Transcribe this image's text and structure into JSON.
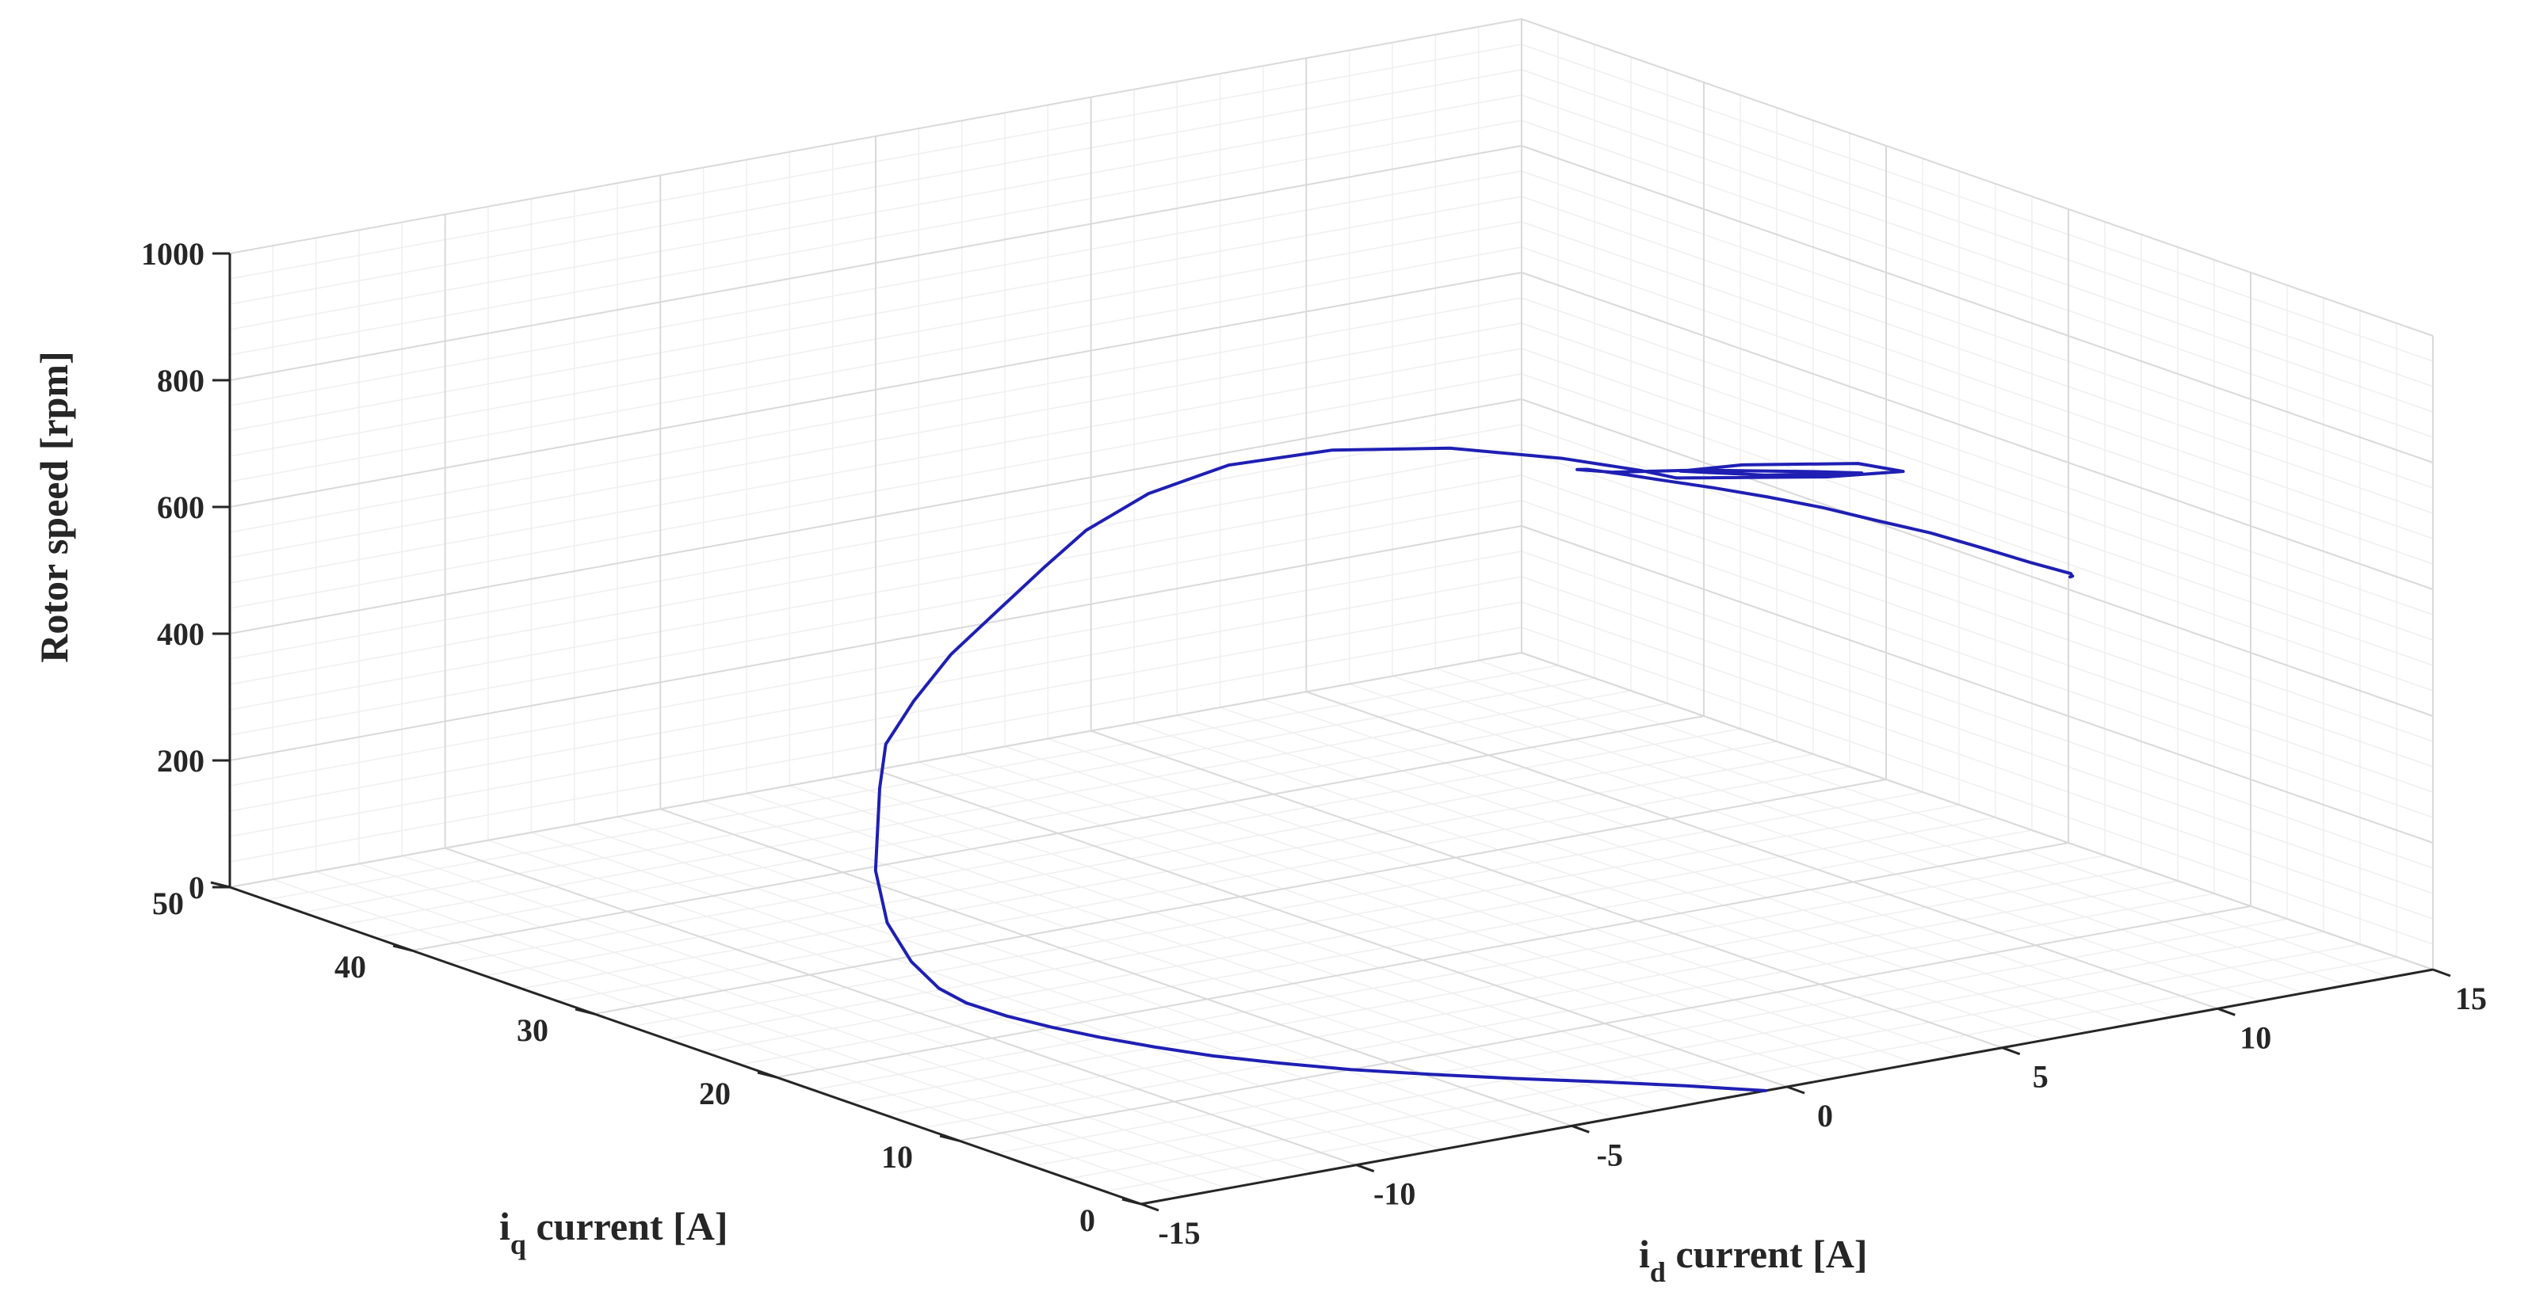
{
  "chart_data": {
    "type": "line",
    "view": "3d",
    "title": "",
    "xlabel": {
      "main": "i",
      "sub": "d",
      "rest": " current [A]"
    },
    "ylabel": {
      "main": "i",
      "sub": "q",
      "rest": " current [A]"
    },
    "zlabel": "Rotor speed [rpm]",
    "xlim": [
      -15,
      15
    ],
    "ylim": [
      0,
      50
    ],
    "zlim": [
      0,
      1000
    ],
    "x_ticks": [
      "-15",
      "-10",
      "-5",
      "0",
      "5",
      "10",
      "15"
    ],
    "y_ticks": [
      "0",
      "10",
      "20",
      "30",
      "40",
      "50"
    ],
    "z_ticks": [
      "0",
      "200",
      "400",
      "600",
      "800",
      "1000"
    ],
    "grid": true,
    "minor_grid": true,
    "line_color": "#1f1fb4",
    "series": [
      {
        "points": [
          [
            -0.5,
            0,
            0
          ],
          [
            -1.5,
            2,
            0
          ],
          [
            -2.6,
            4,
            0
          ],
          [
            -3.8,
            6,
            0
          ],
          [
            -4.9,
            8,
            0
          ],
          [
            -5.9,
            10,
            0
          ],
          [
            -6.7,
            12,
            0
          ],
          [
            -7.4,
            14,
            0
          ],
          [
            -7.9,
            16,
            0
          ],
          [
            -8.3,
            18,
            0
          ],
          [
            -8.6,
            20,
            0
          ],
          [
            -8.8,
            22,
            0
          ],
          [
            -8.9,
            24,
            2
          ],
          [
            -8.9,
            25.5,
            10
          ],
          [
            -8.7,
            27.5,
            30
          ],
          [
            -8.2,
            30,
            60
          ],
          [
            -7.2,
            33,
            100
          ],
          [
            -5.2,
            37.5,
            160
          ],
          [
            -4,
            40,
            190
          ],
          [
            -2.5,
            42,
            220
          ],
          [
            -1,
            43.5,
            260
          ],
          [
            0.5,
            44.5,
            300
          ],
          [
            1.7,
            44.8,
            350
          ],
          [
            2.6,
            44.6,
            400
          ],
          [
            3.5,
            43.3,
            460
          ],
          [
            4.3,
            40.8,
            520
          ],
          [
            5,
            36.8,
            575
          ],
          [
            5.5,
            31.5,
            625
          ],
          [
            5.8,
            26,
            660
          ],
          [
            5.9,
            22,
            680
          ],
          [
            5.9,
            20,
            688
          ],
          [
            7.5,
            15.5,
            715
          ],
          [
            8.2,
            13,
            740
          ],
          [
            8,
            15,
            735
          ],
          [
            7,
            19,
            705
          ],
          [
            6.2,
            20.5,
            690
          ],
          [
            6.9,
            17.5,
            705
          ],
          [
            8,
            14.8,
            722
          ],
          [
            7.6,
            16.5,
            712
          ],
          [
            6.5,
            20.3,
            690
          ],
          [
            5.5,
            22.6,
            676
          ],
          [
            5.2,
            23.8,
            672
          ],
          [
            5.3,
            23.5,
            674
          ],
          [
            5.4,
            21.5,
            684
          ],
          [
            5.5,
            20,
            690
          ],
          [
            5.7,
            17.5,
            700
          ],
          [
            5.9,
            15,
            708
          ],
          [
            6.1,
            12.5,
            714
          ],
          [
            6.3,
            10,
            716
          ],
          [
            6.5,
            7.5,
            719
          ],
          [
            6.6,
            5,
            720
          ],
          [
            6.7,
            2.5,
            720
          ],
          [
            6.8,
            0.5,
            721
          ],
          [
            6.7,
            0.2,
            722
          ],
          [
            6.8,
            0.4,
            718
          ],
          [
            6.7,
            0.3,
            719
          ]
        ]
      }
    ]
  }
}
